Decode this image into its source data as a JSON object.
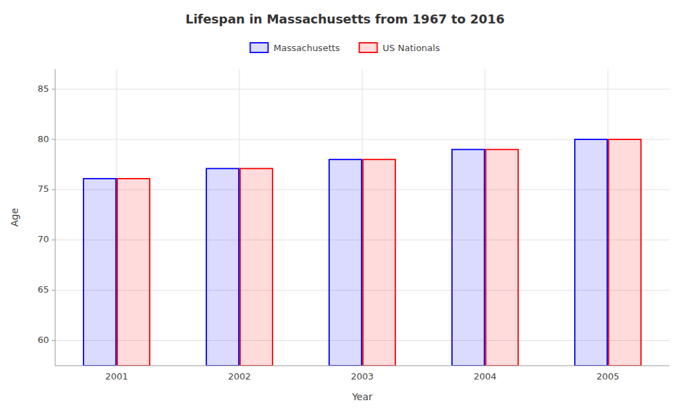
{
  "chart_data": {
    "type": "bar",
    "title": "Lifespan in Massachusetts from 1967 to 2016",
    "xlabel": "Year",
    "ylabel": "Age",
    "categories": [
      "2001",
      "2002",
      "2003",
      "2004",
      "2005"
    ],
    "series": [
      {
        "name": "Massachusetts",
        "color": "#0000ff",
        "values": [
          76.1,
          77.1,
          78.0,
          79.0,
          80.0
        ]
      },
      {
        "name": "US Nationals",
        "color": "#ff0000",
        "values": [
          76.1,
          77.1,
          78.0,
          79.0,
          80.0
        ]
      }
    ],
    "ylim": [
      57.5,
      87
    ],
    "yticks": [
      60,
      65,
      70,
      75,
      80,
      85
    ],
    "grid": true,
    "legend": "top"
  }
}
